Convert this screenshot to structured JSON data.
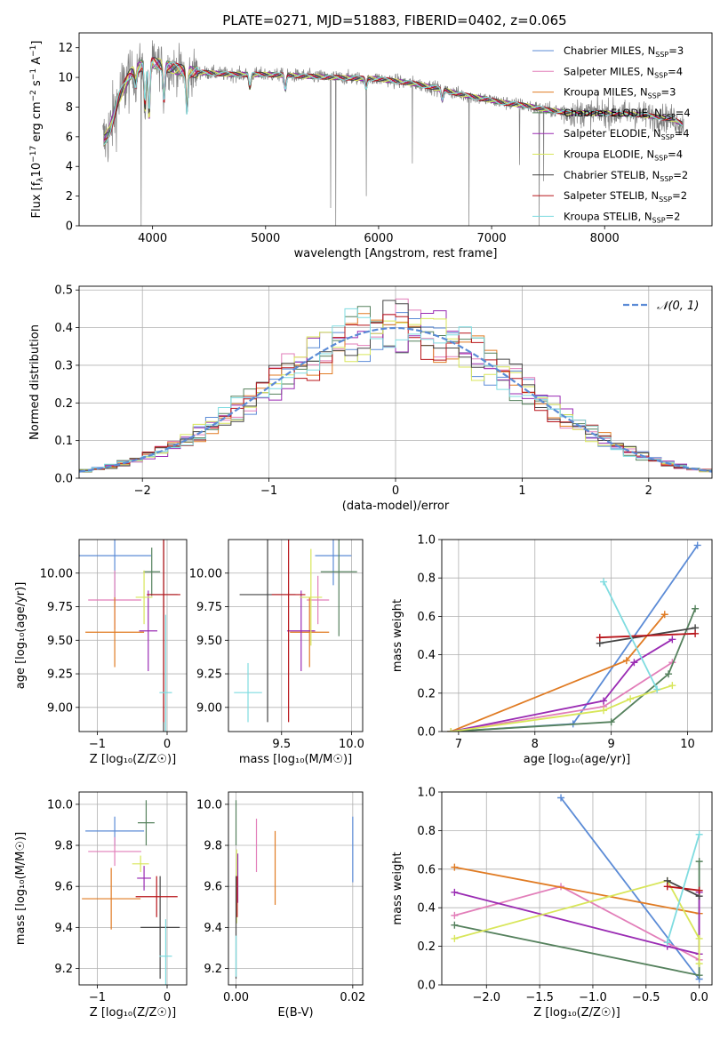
{
  "figure_title": "PLATE=0271, MJD=51883, FIBERID=0402, z=0.065",
  "series_styles": [
    {
      "name": "Chabrier MILES",
      "nssp": "3",
      "color": "#5b8bd6"
    },
    {
      "name": "Salpeter MILES",
      "nssp": "4",
      "color": "#e27eb9"
    },
    {
      "name": "Kroupa MILES",
      "nssp": "3",
      "color": "#e07b23"
    },
    {
      "name": "Chabrier ELODIE",
      "nssp": "4",
      "color": "#55815d"
    },
    {
      "name": "Salpeter ELODIE",
      "nssp": "4",
      "color": "#9a2bb3"
    },
    {
      "name": "Kroupa ELODIE",
      "nssp": "4",
      "color": "#d8e65a"
    },
    {
      "name": "Chabrier STELIB",
      "nssp": "2",
      "color": "#454545"
    },
    {
      "name": "Salpeter STELIB",
      "nssp": "2",
      "color": "#b8141a"
    },
    {
      "name": "Kroupa STELIB",
      "nssp": "2",
      "color": "#7fdce0"
    }
  ],
  "chart_data": [
    {
      "id": "spectrum",
      "type": "line",
      "xlabel": "wavelength [Angstrom, rest frame]",
      "ylabel_parts": [
        "Flux [f",
        "λ",
        "10",
        "−17",
        " erg cm",
        "−2",
        " s",
        "−1",
        " A",
        "−1",
        "]"
      ],
      "xlim": [
        3350,
        8950
      ],
      "ylim": [
        0,
        13
      ],
      "xticks": [
        4000,
        5000,
        6000,
        7000,
        8000
      ],
      "yticks": [
        0,
        2,
        4,
        6,
        8,
        10,
        12
      ],
      "grid": false,
      "legend": "top-right",
      "data_color": "#808080",
      "continuum": [
        [
          3560,
          5.6
        ],
        [
          3620,
          6.4
        ],
        [
          3700,
          8.6
        ],
        [
          3800,
          10.2
        ],
        [
          3900,
          10.8
        ],
        [
          4000,
          11.0
        ],
        [
          4100,
          10.8
        ],
        [
          4200,
          10.6
        ],
        [
          4300,
          10.4
        ],
        [
          4500,
          10.3
        ],
        [
          4700,
          10.2
        ],
        [
          5000,
          10.2
        ],
        [
          5300,
          10.1
        ],
        [
          5600,
          10.0
        ],
        [
          6000,
          9.9
        ],
        [
          6300,
          9.6
        ],
        [
          6500,
          9.3
        ],
        [
          6700,
          8.9
        ],
        [
          6900,
          8.6
        ],
        [
          7100,
          8.3
        ],
        [
          7300,
          8.1
        ],
        [
          7500,
          7.8
        ],
        [
          7700,
          7.6
        ],
        [
          8000,
          7.6
        ],
        [
          8300,
          7.5
        ],
        [
          8600,
          7.2
        ],
        [
          8700,
          6.8
        ]
      ],
      "absorption": [
        [
          3850,
          9.6
        ],
        [
          3934,
          8.0
        ],
        [
          3969,
          7.4
        ],
        [
          4101,
          8.6
        ],
        [
          4304,
          7.8
        ],
        [
          4861,
          9.3
        ],
        [
          5175,
          9.2
        ],
        [
          5890,
          9.3
        ],
        [
          6563,
          8.5
        ]
      ],
      "spikes": [
        [
          3900,
          0
        ],
        [
          5577,
          1.2
        ],
        [
          5620,
          0
        ],
        [
          5890,
          2.0
        ],
        [
          6300,
          4.2
        ],
        [
          6800,
          0
        ],
        [
          7246,
          4.1
        ],
        [
          7420,
          0
        ],
        [
          7460,
          3.0
        ]
      ]
    },
    {
      "id": "residuals",
      "type": "line",
      "xlabel": "(data-model)/error",
      "ylabel": "Normed distribution",
      "xlim": [
        -2.5,
        2.5
      ],
      "ylim": [
        0,
        0.51
      ],
      "xticks": [
        -2,
        -1,
        0,
        1,
        2
      ],
      "yticks": [
        0.0,
        0.1,
        0.2,
        0.3,
        0.4,
        0.5
      ],
      "grid": true,
      "legend": "top-right",
      "reference_label": "𝒩(0, 1)",
      "reference_color": "#5b8bd6",
      "bin_width": 0.1
    },
    {
      "id": "age_vs_Z",
      "type": "scatter",
      "xlabel": "Z [log₁₀(Z/Z☉)]",
      "ylabel": "age  [log₁₀(age/yr)]",
      "xlim": [
        -1.26,
        0.28
      ],
      "ylim": [
        8.82,
        10.25
      ],
      "xticks": [
        -1,
        0
      ],
      "yticks": [
        9.0,
        9.25,
        9.5,
        9.75,
        10.0
      ],
      "grid": true,
      "points": [
        {
          "series": 0,
          "x": -0.75,
          "xerr": 0.52,
          "y": 10.13,
          "yerr": 0.36
        },
        {
          "series": 1,
          "x": -0.75,
          "xerr": 0.38,
          "y": 9.8,
          "yerr": 0.22
        },
        {
          "series": 2,
          "x": -0.75,
          "xerr": 0.42,
          "y": 9.56,
          "yerr": 0.26
        },
        {
          "series": 3,
          "x": -0.22,
          "xerr": 0.12,
          "y": 10.01,
          "yerr": 0.18
        },
        {
          "series": 4,
          "x": -0.27,
          "xerr": 0.13,
          "y": 9.57,
          "yerr": 0.3
        },
        {
          "series": 5,
          "x": -0.33,
          "xerr": 0.12,
          "y": 9.82,
          "yerr": 0.2
        },
        {
          "series": 6,
          "x": -0.05,
          "xerr": 0.2,
          "y": 9.84,
          "yerr": 1.02
        },
        {
          "series": 7,
          "x": -0.05,
          "xerr": 0.24,
          "y": 9.84,
          "yerr": 0.95
        },
        {
          "series": 8,
          "x": -0.02,
          "xerr": 0.09,
          "y": 9.11,
          "yerr": 0.58
        }
      ]
    },
    {
      "id": "age_vs_mass",
      "type": "scatter",
      "xlabel": "mass [log₁₀(M/M☉)]",
      "ylabel": "",
      "xlim": [
        9.12,
        10.08
      ],
      "ylim": [
        8.82,
        10.25
      ],
      "xticks": [
        9.5,
        10.0
      ],
      "yticks": [
        9.0,
        9.25,
        9.5,
        9.75,
        10.0
      ],
      "grid": true,
      "points": [
        {
          "series": 0,
          "x": 9.87,
          "xerr": 0.13,
          "y": 10.13,
          "yerr": 0.22
        },
        {
          "series": 1,
          "x": 9.76,
          "xerr": 0.08,
          "y": 9.8,
          "yerr": 0.18
        },
        {
          "series": 2,
          "x": 9.7,
          "xerr": 0.14,
          "y": 9.56,
          "yerr": 0.26
        },
        {
          "series": 3,
          "x": 9.91,
          "xerr": 0.13,
          "y": 10.01,
          "yerr": 0.48
        },
        {
          "series": 4,
          "x": 9.64,
          "xerr": 0.1,
          "y": 9.57,
          "yerr": 0.3
        },
        {
          "series": 5,
          "x": 9.71,
          "xerr": 0.08,
          "y": 9.82,
          "yerr": 0.36
        },
        {
          "series": 6,
          "x": 9.4,
          "xerr": 0.2,
          "y": 9.84,
          "yerr": 0.95
        },
        {
          "series": 7,
          "x": 9.55,
          "xerr": 0.12,
          "y": 9.84,
          "yerr": 0.95
        },
        {
          "series": 8,
          "x": 9.26,
          "xerr": 0.1,
          "y": 9.11,
          "yerr": 0.22
        }
      ]
    },
    {
      "id": "weight_vs_age",
      "type": "line",
      "xlabel": "age  [log₁₀(age/yr)]",
      "ylabel": "mass weight",
      "xlim": [
        6.78,
        10.32
      ],
      "ylim": [
        0,
        1.0
      ],
      "xticks": [
        7,
        8,
        9,
        10
      ],
      "yticks": [
        0.0,
        0.2,
        0.4,
        0.6,
        0.8,
        1.0
      ],
      "grid": true,
      "series": [
        {
          "series": 0,
          "x": [
            6.9,
            8.5,
            10.13
          ],
          "y": [
            0.0,
            0.04,
            0.97
          ]
        },
        {
          "series": 1,
          "x": [
            6.9,
            8.9,
            9.8
          ],
          "y": [
            0.0,
            0.13,
            0.36
          ]
        },
        {
          "series": 2,
          "x": [
            6.9,
            9.2,
            9.7
          ],
          "y": [
            0.0,
            0.37,
            0.61
          ]
        },
        {
          "series": 3,
          "x": [
            6.9,
            9.0,
            9.75,
            10.1
          ],
          "y": [
            0.0,
            0.05,
            0.3,
            0.64
          ]
        },
        {
          "series": 4,
          "x": [
            6.9,
            8.9,
            9.3,
            9.8
          ],
          "y": [
            0.0,
            0.16,
            0.36,
            0.48
          ]
        },
        {
          "series": 5,
          "x": [
            6.9,
            8.9,
            9.25,
            9.8
          ],
          "y": [
            0.0,
            0.11,
            0.17,
            0.24
          ]
        },
        {
          "series": 6,
          "x": [
            8.85,
            10.1
          ],
          "y": [
            0.46,
            0.54
          ]
        },
        {
          "series": 7,
          "x": [
            8.85,
            10.1
          ],
          "y": [
            0.49,
            0.51
          ]
        },
        {
          "series": 8,
          "x": [
            8.9,
            9.6
          ],
          "y": [
            0.78,
            0.22
          ]
        }
      ]
    },
    {
      "id": "mass_vs_Z",
      "type": "scatter",
      "xlabel": "Z [log₁₀(Z/Z☉)]",
      "ylabel": "mass [log₁₀(M/M☉)]",
      "xlim": [
        -1.26,
        0.28
      ],
      "ylim": [
        9.12,
        10.06
      ],
      "xticks": [
        -1,
        0
      ],
      "yticks": [
        9.2,
        9.4,
        9.6,
        9.8,
        10.0
      ],
      "grid": true,
      "points": [
        {
          "series": 0,
          "x": -0.75,
          "xerr": 0.42,
          "y": 9.87,
          "yerr": 0.07
        },
        {
          "series": 1,
          "x": -0.75,
          "xerr": 0.38,
          "y": 9.77,
          "yerr": 0.07
        },
        {
          "series": 2,
          "x": -0.8,
          "xerr": 0.42,
          "y": 9.54,
          "yerr": 0.15
        },
        {
          "series": 3,
          "x": -0.3,
          "xerr": 0.12,
          "y": 9.91,
          "yerr": 0.11
        },
        {
          "series": 4,
          "x": -0.33,
          "xerr": 0.1,
          "y": 9.64,
          "yerr": 0.06
        },
        {
          "series": 5,
          "x": -0.38,
          "xerr": 0.12,
          "y": 9.71,
          "yerr": 0.04
        },
        {
          "series": 6,
          "x": -0.1,
          "xerr": 0.28,
          "y": 9.4,
          "yerr": 0.25
        },
        {
          "series": 7,
          "x": -0.15,
          "xerr": 0.3,
          "y": 9.55,
          "yerr": 0.1
        },
        {
          "series": 8,
          "x": -0.02,
          "xerr": 0.09,
          "y": 9.26,
          "yerr": 0.18
        }
      ]
    },
    {
      "id": "mass_vs_ebv",
      "type": "scatter",
      "xlabel": "E(B-V)",
      "ylabel": "",
      "xlim": [
        -0.0013,
        0.0217
      ],
      "ylim": [
        9.12,
        10.06
      ],
      "xticks": [
        0.0,
        0.02
      ],
      "xtick_labels": [
        "0.00",
        "0.02"
      ],
      "yticks": [
        9.2,
        9.4,
        9.6,
        9.8,
        10.0
      ],
      "grid": true,
      "points": [
        {
          "series": 0,
          "x": 0.02,
          "xerr": 0,
          "y": 9.78,
          "yerr": 0.16
        },
        {
          "series": 1,
          "x": 0.0035,
          "xerr": 0,
          "y": 9.8,
          "yerr": 0.13
        },
        {
          "series": 2,
          "x": 0.0067,
          "xerr": 0,
          "y": 9.69,
          "yerr": 0.18
        },
        {
          "series": 3,
          "x": 0.0,
          "xerr": 0,
          "y": 9.91,
          "yerr": 0.11
        },
        {
          "series": 4,
          "x": 0.0003,
          "xerr": 0,
          "y": 9.64,
          "yerr": 0.12
        },
        {
          "series": 5,
          "x": 0.0001,
          "xerr": 0,
          "y": 9.6,
          "yerr": 0.18
        },
        {
          "series": 6,
          "x": 0.0,
          "xerr": 0,
          "y": 9.4,
          "yerr": 0.25
        },
        {
          "series": 7,
          "x": 0.0002,
          "xerr": 0,
          "y": 9.55,
          "yerr": 0.1
        },
        {
          "series": 8,
          "x": 0.0,
          "xerr": 0,
          "y": 9.26,
          "yerr": 0.1
        }
      ]
    },
    {
      "id": "weight_vs_Z",
      "type": "line",
      "xlabel": "Z [log₁₀(Z/Z☉)]",
      "ylabel": "mass weight",
      "xlim": [
        -2.42,
        0.12
      ],
      "ylim": [
        0,
        1.0
      ],
      "xticks": [
        -2.0,
        -1.5,
        -1.0,
        -0.5,
        0.0
      ],
      "yticks": [
        0.0,
        0.2,
        0.4,
        0.6,
        0.8,
        1.0
      ],
      "grid": true,
      "series": [
        {
          "series": 0,
          "x": [
            -1.3,
            0.0
          ],
          "y": [
            0.97,
            0.03
          ]
        },
        {
          "series": 1,
          "x": [
            -2.3,
            -1.3,
            0.0
          ],
          "y": [
            0.36,
            0.51,
            0.13
          ]
        },
        {
          "series": 2,
          "x": [
            -2.3,
            0.0
          ],
          "y": [
            0.61,
            0.37
          ]
        },
        {
          "series": 3,
          "x": [
            -2.3,
            0.0,
            0.0
          ],
          "y": [
            0.31,
            0.05,
            0.64
          ]
        },
        {
          "series": 4,
          "x": [
            -2.3,
            -0.3,
            0.0,
            0.0
          ],
          "y": [
            0.48,
            0.2,
            0.16,
            0.48
          ]
        },
        {
          "series": 5,
          "x": [
            -2.3,
            -0.3,
            0.0,
            0.0
          ],
          "y": [
            0.24,
            0.54,
            0.24,
            0.11
          ]
        },
        {
          "series": 6,
          "x": [
            -0.3,
            0.0
          ],
          "y": [
            0.54,
            0.46
          ]
        },
        {
          "series": 7,
          "x": [
            -0.3,
            0.0
          ],
          "y": [
            0.51,
            0.49
          ]
        },
        {
          "series": 8,
          "x": [
            -0.3,
            0.0
          ],
          "y": [
            0.22,
            0.78
          ]
        }
      ]
    }
  ]
}
